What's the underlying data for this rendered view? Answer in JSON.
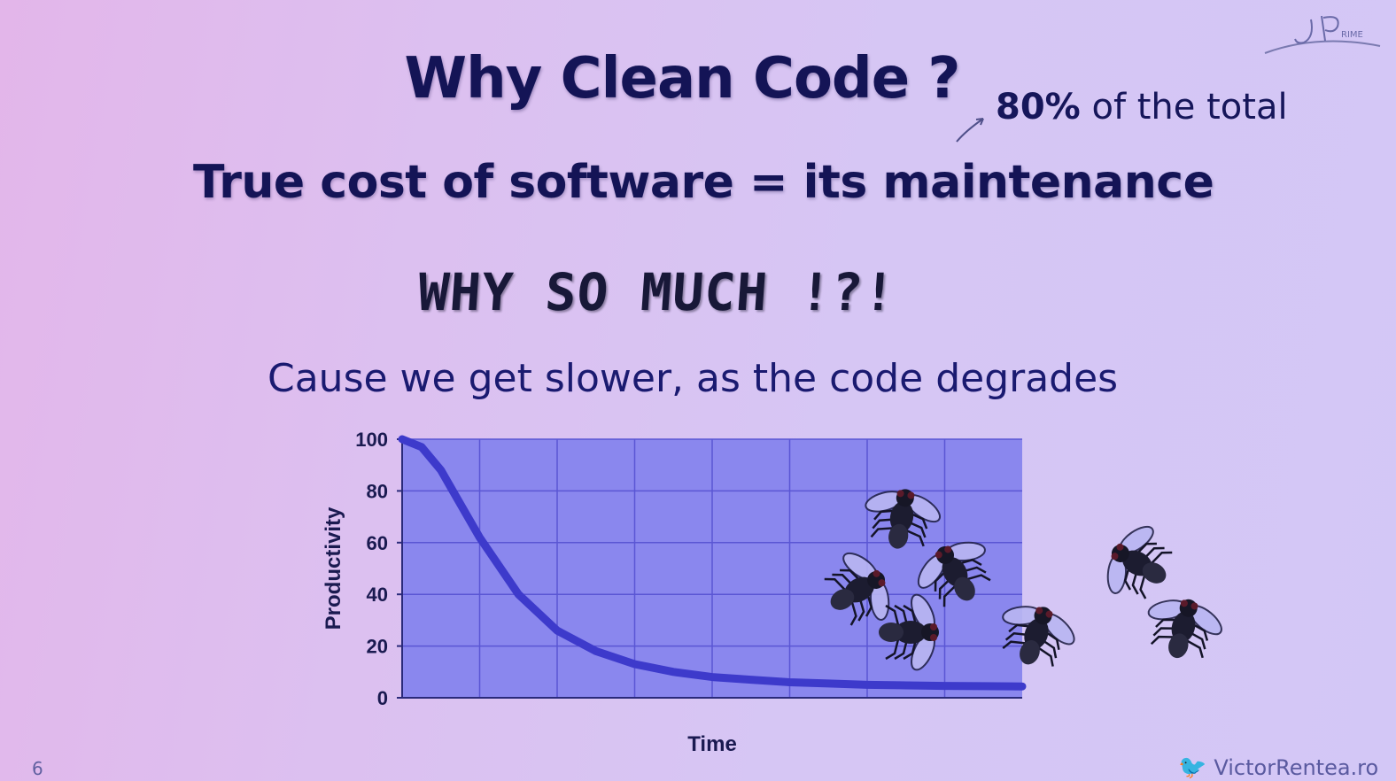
{
  "slide": {
    "title": "Why Clean Code ?",
    "note_prefix": "80%",
    "note_suffix": "of the total",
    "cost_line": "True cost of software = its maintenance",
    "exclaim": "WHY SO MUCH !?!",
    "cause": "Cause we get slower, as the code degrades",
    "slide_number": "6",
    "footer_text": "VictorRentea.ro",
    "logo_text": "jPrime"
  },
  "chart_data": {
    "type": "line",
    "xlabel": "Time",
    "ylabel": "Productivity",
    "ylim": [
      0,
      100
    ],
    "yticks": [
      0,
      20,
      40,
      60,
      80,
      100
    ],
    "grid": true,
    "legend": "none",
    "series": [
      {
        "x": [
          0,
          0.25,
          0.5,
          0.75,
          1,
          1.5,
          2,
          2.5,
          3,
          3.5,
          4,
          4.5,
          5,
          5.5,
          6,
          6.5,
          7,
          7.5,
          8
        ],
        "values": [
          100,
          97,
          88,
          75,
          62,
          40,
          26,
          18,
          13,
          10,
          8,
          7,
          6,
          5.5,
          5,
          4.8,
          4.6,
          4.5,
          4.4
        ]
      }
    ],
    "colors": {
      "plot_bg": "#8a87ee",
      "line": "#3d3acb",
      "grid": "#5a56d4"
    }
  }
}
